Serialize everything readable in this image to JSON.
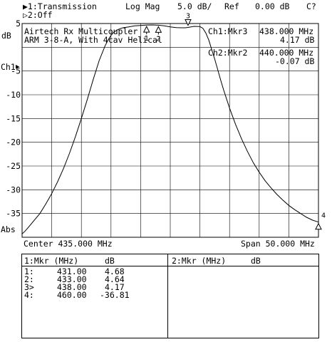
{
  "header": {
    "ch1_label": "▶1:Transmission",
    "ch2_label": "▷2:Off",
    "format": "Log Mag",
    "scale": "5.0 dB/",
    "ref_label": "Ref",
    "ref_value": "0.00 dB",
    "status": "C?"
  },
  "trace_title": {
    "line1": "Airtech Rx Multicoupler",
    "line2": "ARM 3-8-A, With 4cav Helical"
  },
  "marker_readouts": {
    "ch1_label": "Ch1:Mkr3",
    "ch1_freq": "438.000 MHz",
    "ch1_value": "4.17 dB",
    "ch2_label": "Ch2:Mkr2",
    "ch2_freq": "440.000 MHz",
    "ch2_value": "-0.07 dB"
  },
  "axis": {
    "unit_label": "dB",
    "ch1_ref_label": "Ch1",
    "abs_label": "Abs",
    "center": "Center 435.000 MHz",
    "span": "Span 50.000 MHz"
  },
  "marker_table": {
    "left_header_title": "1:Mkr (MHz)",
    "left_header_unit": "dB",
    "right_header_title": "2:Mkr (MHz)",
    "right_header_unit": "dB",
    "rows": [
      {
        "id": "1:",
        "freq": "431.00",
        "value": "4.68"
      },
      {
        "id": "2:",
        "freq": "433.00",
        "value": "4.64"
      },
      {
        "id": "3>",
        "freq": "438.00",
        "value": "4.17"
      },
      {
        "id": "4:",
        "freq": "460.00",
        "value": "-36.81"
      }
    ]
  },
  "chart_data": {
    "type": "line",
    "xlabel": "",
    "ylabel": "dB",
    "xlim": [
      410,
      460
    ],
    "ylim": [
      -40,
      5
    ],
    "yticks": [
      5,
      0,
      -5,
      -10,
      -15,
      -20,
      -25,
      -30,
      -35
    ],
    "ytick_labels": [
      "5",
      "",
      "-5",
      "-10",
      "-15",
      "-20",
      "-25",
      "-30",
      "-35"
    ],
    "grid": true,
    "series": [
      {
        "values_x": [
          410,
          410.5,
          411,
          412,
          413,
          414,
          415,
          416,
          417,
          418,
          419,
          420,
          421,
          422,
          423,
          424,
          424.5,
          425,
          425.5,
          426,
          426.5,
          427,
          428,
          429,
          430,
          431,
          432,
          433,
          434,
          435,
          436,
          437,
          437.5,
          438,
          439,
          440,
          440.5,
          441,
          441.5,
          442,
          442.5,
          443,
          443.5,
          444,
          445,
          446,
          447,
          448,
          449,
          450,
          451,
          452,
          453,
          454,
          455,
          456,
          457,
          458,
          459,
          460
        ],
        "values_y": [
          -39.3,
          -38.7,
          -38.0,
          -36.5,
          -35.0,
          -33.0,
          -30.8,
          -28.3,
          -25.5,
          -22.3,
          -18.8,
          -15.0,
          -11.0,
          -6.8,
          -2.8,
          0.3,
          1.5,
          2.5,
          3.2,
          3.6,
          3.9,
          4.1,
          4.3,
          4.5,
          4.6,
          4.68,
          4.7,
          4.64,
          4.5,
          4.3,
          4.15,
          4.1,
          4.1,
          4.17,
          4.4,
          4.35,
          4.0,
          3.0,
          1.5,
          -0.5,
          -2.5,
          -4.7,
          -6.9,
          -9.0,
          -12.8,
          -16.2,
          -19.2,
          -21.9,
          -24.3,
          -26.3,
          -28.1,
          -29.6,
          -31.0,
          -32.2,
          -33.3,
          -34.2,
          -35.0,
          -35.8,
          -36.4,
          -36.81
        ]
      }
    ],
    "markers": [
      {
        "label": "1",
        "x": 431,
        "y": 4.68,
        "style": "triangle-up"
      },
      {
        "label": "2",
        "x": 433,
        "y": 4.64,
        "style": "triangle-up"
      },
      {
        "label": "3",
        "x": 438,
        "y": 4.17,
        "style": "triangle-down"
      },
      {
        "label": "4",
        "x": 460,
        "y": -36.81,
        "style": "triangle-up"
      }
    ]
  }
}
